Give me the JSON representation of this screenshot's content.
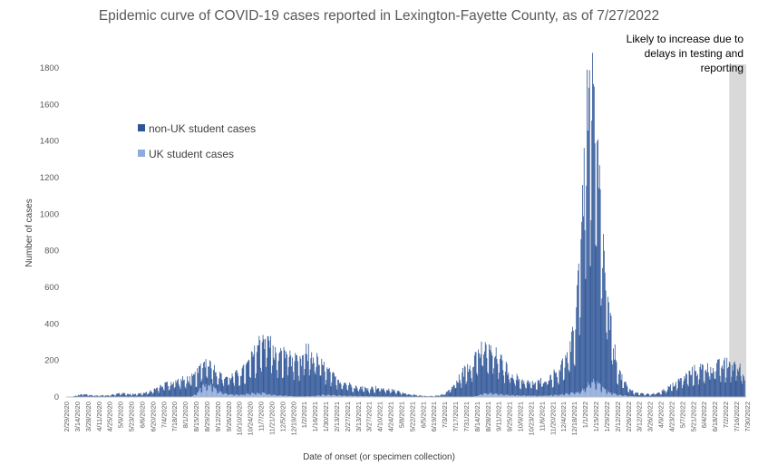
{
  "chart_data": {
    "type": "bar",
    "stacked": true,
    "title": "Epidemic curve of COVID-19 cases reported in Lexington-Fayette County, as of 7/27/2022",
    "xlabel": "Date of onset (or specimen collection)",
    "ylabel": "Number of cases",
    "ylim": [
      0,
      1800
    ],
    "yticks": [
      0,
      200,
      400,
      600,
      800,
      1000,
      1200,
      1400,
      1600,
      1800
    ],
    "xlim": [
      "2020-02-29",
      "2022-07-29"
    ],
    "xtick_labels": [
      "2/29/2020",
      "3/14/2020",
      "3/28/2020",
      "4/11/2020",
      "4/25/2020",
      "5/9/2020",
      "5/23/2020",
      "6/6/2020",
      "6/20/2020",
      "7/4/2020",
      "7/18/2020",
      "8/1/2020",
      "8/15/2020",
      "8/29/2020",
      "9/12/2020",
      "9/26/2020",
      "10/10/2020",
      "10/24/2020",
      "11/7/2020",
      "11/21/2020",
      "12/5/2020",
      "12/19/2020",
      "1/2/2021",
      "1/16/2021",
      "1/30/2021",
      "2/13/2021",
      "2/27/2021",
      "3/13/2021",
      "3/27/2021",
      "4/10/2021",
      "4/24/2021",
      "5/8/2021",
      "5/22/2021",
      "6/5/2021",
      "6/19/2021",
      "7/3/2021",
      "7/17/2021",
      "7/31/2021",
      "8/14/2021",
      "8/28/2021",
      "9/11/2021",
      "9/25/2021",
      "10/9/2021",
      "10/23/2021",
      "11/6/2021",
      "11/20/2021",
      "12/4/2021",
      "12/18/2021",
      "1/1/2022",
      "1/15/2022",
      "1/29/2022",
      "2/12/2022",
      "2/26/2022",
      "3/12/2022",
      "3/26/2022",
      "4/9/2022",
      "4/23/2022",
      "5/7/2022",
      "5/21/2022",
      "6/4/2022",
      "6/18/2022",
      "7/2/2022",
      "7/16/2022",
      "7/30/2022"
    ],
    "legend_position": "upper-left",
    "grid": false,
    "series": [
      {
        "name": "non-UK student cases",
        "color": "#2f5597",
        "points": [
          [
            "2020-03-01",
            0
          ],
          [
            "2020-03-08",
            2
          ],
          [
            "2020-03-15",
            10
          ],
          [
            "2020-03-22",
            15
          ],
          [
            "2020-03-29",
            12
          ],
          [
            "2020-04-05",
            8
          ],
          [
            "2020-04-12",
            8
          ],
          [
            "2020-04-19",
            9
          ],
          [
            "2020-04-26",
            11
          ],
          [
            "2020-05-03",
            15
          ],
          [
            "2020-05-10",
            22
          ],
          [
            "2020-05-17",
            18
          ],
          [
            "2020-05-24",
            16
          ],
          [
            "2020-05-31",
            18
          ],
          [
            "2020-06-07",
            20
          ],
          [
            "2020-06-14",
            25
          ],
          [
            "2020-06-21",
            38
          ],
          [
            "2020-06-28",
            55
          ],
          [
            "2020-07-05",
            70
          ],
          [
            "2020-07-12",
            75
          ],
          [
            "2020-07-19",
            85
          ],
          [
            "2020-07-26",
            90
          ],
          [
            "2020-08-02",
            95
          ],
          [
            "2020-08-09",
            100
          ],
          [
            "2020-08-16",
            105
          ],
          [
            "2020-08-23",
            120
          ],
          [
            "2020-08-30",
            135
          ],
          [
            "2020-09-06",
            110
          ],
          [
            "2020-09-13",
            95
          ],
          [
            "2020-09-20",
            90
          ],
          [
            "2020-09-27",
            95
          ],
          [
            "2020-10-04",
            105
          ],
          [
            "2020-10-11",
            120
          ],
          [
            "2020-10-18",
            140
          ],
          [
            "2020-10-25",
            180
          ],
          [
            "2020-11-01",
            230
          ],
          [
            "2020-11-08",
            300
          ],
          [
            "2020-11-15",
            310
          ],
          [
            "2020-11-22",
            260
          ],
          [
            "2020-11-29",
            210
          ],
          [
            "2020-12-06",
            220
          ],
          [
            "2020-12-13",
            240
          ],
          [
            "2020-12-20",
            200
          ],
          [
            "2020-12-27",
            170
          ],
          [
            "2021-01-03",
            230
          ],
          [
            "2021-01-10",
            240
          ],
          [
            "2021-01-17",
            200
          ],
          [
            "2021-01-24",
            170
          ],
          [
            "2021-01-31",
            140
          ],
          [
            "2021-02-07",
            110
          ],
          [
            "2021-02-14",
            90
          ],
          [
            "2021-02-21",
            75
          ],
          [
            "2021-02-28",
            65
          ],
          [
            "2021-03-07",
            55
          ],
          [
            "2021-03-14",
            50
          ],
          [
            "2021-03-21",
            45
          ],
          [
            "2021-03-28",
            45
          ],
          [
            "2021-04-04",
            48
          ],
          [
            "2021-04-11",
            45
          ],
          [
            "2021-04-18",
            40
          ],
          [
            "2021-04-25",
            35
          ],
          [
            "2021-05-02",
            30
          ],
          [
            "2021-05-09",
            25
          ],
          [
            "2021-05-16",
            18
          ],
          [
            "2021-05-23",
            12
          ],
          [
            "2021-05-30",
            8
          ],
          [
            "2021-06-06",
            6
          ],
          [
            "2021-06-13",
            5
          ],
          [
            "2021-06-20",
            6
          ],
          [
            "2021-06-27",
            10
          ],
          [
            "2021-07-04",
            20
          ],
          [
            "2021-07-11",
            45
          ],
          [
            "2021-07-18",
            80
          ],
          [
            "2021-07-25",
            120
          ],
          [
            "2021-08-01",
            160
          ],
          [
            "2021-08-08",
            200
          ],
          [
            "2021-08-15",
            230
          ],
          [
            "2021-08-22",
            240
          ],
          [
            "2021-08-29",
            230
          ],
          [
            "2021-09-05",
            215
          ],
          [
            "2021-09-12",
            190
          ],
          [
            "2021-09-19",
            160
          ],
          [
            "2021-09-26",
            130
          ],
          [
            "2021-10-03",
            100
          ],
          [
            "2021-10-10",
            85
          ],
          [
            "2021-10-17",
            75
          ],
          [
            "2021-10-24",
            70
          ],
          [
            "2021-10-31",
            70
          ],
          [
            "2021-11-07",
            85
          ],
          [
            "2021-11-14",
            100
          ],
          [
            "2021-11-21",
            110
          ],
          [
            "2021-11-28",
            140
          ],
          [
            "2021-12-05",
            175
          ],
          [
            "2021-12-12",
            210
          ],
          [
            "2021-12-19",
            350
          ],
          [
            "2021-12-26",
            800
          ],
          [
            "2022-01-02",
            1380
          ],
          [
            "2022-01-09",
            1520
          ],
          [
            "2022-01-16",
            1250
          ],
          [
            "2022-01-23",
            850
          ],
          [
            "2022-01-30",
            480
          ],
          [
            "2022-02-06",
            280
          ],
          [
            "2022-02-13",
            140
          ],
          [
            "2022-02-20",
            75
          ],
          [
            "2022-02-27",
            40
          ],
          [
            "2022-03-06",
            25
          ],
          [
            "2022-03-13",
            18
          ],
          [
            "2022-03-20",
            15
          ],
          [
            "2022-03-27",
            15
          ],
          [
            "2022-04-03",
            20
          ],
          [
            "2022-04-10",
            30
          ],
          [
            "2022-04-17",
            45
          ],
          [
            "2022-04-24",
            60
          ],
          [
            "2022-05-01",
            80
          ],
          [
            "2022-05-08",
            100
          ],
          [
            "2022-05-15",
            120
          ],
          [
            "2022-05-22",
            140
          ],
          [
            "2022-05-29",
            150
          ],
          [
            "2022-06-05",
            160
          ],
          [
            "2022-06-12",
            170
          ],
          [
            "2022-06-19",
            165
          ],
          [
            "2022-06-26",
            170
          ],
          [
            "2022-07-03",
            175
          ],
          [
            "2022-07-10",
            180
          ],
          [
            "2022-07-17",
            170
          ],
          [
            "2022-07-24",
            140
          ],
          [
            "2022-07-27",
            90
          ]
        ]
      },
      {
        "name": "UK student cases",
        "color": "#8faadc",
        "points": [
          [
            "2020-03-01",
            0
          ],
          [
            "2020-08-09",
            0
          ],
          [
            "2020-08-16",
            20
          ],
          [
            "2020-08-23",
            55
          ],
          [
            "2020-08-30",
            75
          ],
          [
            "2020-09-06",
            55
          ],
          [
            "2020-09-13",
            35
          ],
          [
            "2020-09-20",
            22
          ],
          [
            "2020-09-27",
            15
          ],
          [
            "2020-10-04",
            12
          ],
          [
            "2020-10-11",
            12
          ],
          [
            "2020-10-18",
            15
          ],
          [
            "2020-10-25",
            20
          ],
          [
            "2020-11-01",
            22
          ],
          [
            "2020-11-08",
            22
          ],
          [
            "2020-11-15",
            18
          ],
          [
            "2020-11-22",
            12
          ],
          [
            "2020-11-29",
            8
          ],
          [
            "2020-12-06",
            8
          ],
          [
            "2020-12-13",
            6
          ],
          [
            "2020-12-20",
            3
          ],
          [
            "2021-01-03",
            3
          ],
          [
            "2021-01-17",
            6
          ],
          [
            "2021-01-24",
            10
          ],
          [
            "2021-01-31",
            12
          ],
          [
            "2021-02-07",
            10
          ],
          [
            "2021-02-14",
            8
          ],
          [
            "2021-02-28",
            6
          ],
          [
            "2021-03-14",
            5
          ],
          [
            "2021-03-28",
            4
          ],
          [
            "2021-04-11",
            3
          ],
          [
            "2021-04-25",
            3
          ],
          [
            "2021-05-09",
            2
          ],
          [
            "2021-05-23",
            0
          ],
          [
            "2021-08-08",
            0
          ],
          [
            "2021-08-15",
            8
          ],
          [
            "2021-08-22",
            18
          ],
          [
            "2021-08-29",
            22
          ],
          [
            "2021-09-05",
            20
          ],
          [
            "2021-09-12",
            15
          ],
          [
            "2021-09-26",
            10
          ],
          [
            "2021-10-10",
            8
          ],
          [
            "2021-10-31",
            6
          ],
          [
            "2021-11-14",
            8
          ],
          [
            "2021-11-28",
            12
          ],
          [
            "2021-12-12",
            20
          ],
          [
            "2021-12-26",
            30
          ],
          [
            "2022-01-02",
            50
          ],
          [
            "2022-01-09",
            95
          ],
          [
            "2022-01-16",
            85
          ],
          [
            "2022-01-23",
            55
          ],
          [
            "2022-01-30",
            30
          ],
          [
            "2022-02-13",
            12
          ],
          [
            "2022-02-27",
            5
          ],
          [
            "2022-03-13",
            2
          ],
          [
            "2022-03-27",
            1
          ],
          [
            "2022-05-01",
            2
          ],
          [
            "2022-05-22",
            1
          ],
          [
            "2022-07-27",
            0
          ]
        ]
      }
    ],
    "annotations": [
      {
        "text": "Likely to increase due to delays in testing and reporting",
        "lines": [
          "Likely to increase due to",
          "delays in testing and",
          "reporting"
        ],
        "shaded_range": [
          "2022-07-07",
          "2022-07-29"
        ],
        "shade_color": "#d9d9d9"
      }
    ]
  }
}
